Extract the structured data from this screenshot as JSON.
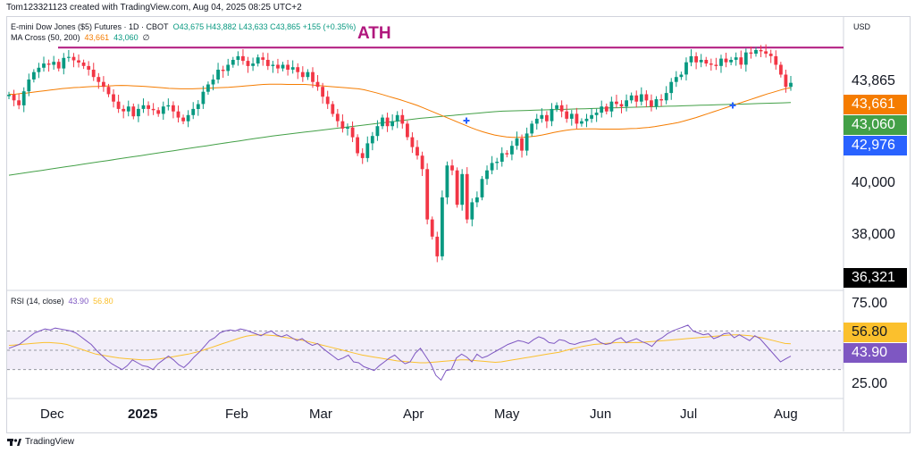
{
  "header": {
    "created_line": "Tom123321123 created with TradingView.com, Aug 04, 2025 08:25 UTC+2",
    "instrument": "E-mini Dow Jones ($5) Futures · 1D · CBOT",
    "ohlc": "O43,675  H43,882  L43,633  C43,865  +155 (+0.35%)",
    "ma_label": "MA Cross (50, 200)",
    "ma_fast": "43,661",
    "ma_slow": "43,060",
    "ma_symbol": "∅",
    "rsi_label": "RSI (14, close)",
    "rsi_value": "43.90",
    "rsi_ma": "56.80",
    "annotation": "ATH",
    "currency": "USD"
  },
  "price_axis": {
    "labels": [
      "43,865",
      "40,000",
      "38,000"
    ],
    "badges": [
      {
        "text": "43,661",
        "color": "#f57c00"
      },
      {
        "text": "43,060",
        "color": "#43a047"
      },
      {
        "text": "42,976",
        "color": "#2962ff"
      },
      {
        "text": "36,321",
        "color": "#000000"
      }
    ]
  },
  "rsi_axis": {
    "labels": [
      "75.00",
      "25.00"
    ],
    "badges": [
      {
        "text": "56.80",
        "color": "#fbc02d",
        "text_color": "#131722"
      },
      {
        "text": "43.90",
        "color": "#7e57c2",
        "text_color": "#ffffff"
      }
    ]
  },
  "time_axis": [
    "Dec",
    "2025",
    "Feb",
    "Mar",
    "Apr",
    "May",
    "Jun",
    "Jul",
    "Aug"
  ],
  "footer": {
    "brand": "TradingView"
  },
  "colors": {
    "up": "#089981",
    "down": "#f23645",
    "ma50": "#f57c00",
    "ma200": "#43a047",
    "rsi": "#7e57c2",
    "rsi_ma": "#fbc02d",
    "ath_line": "#b0177d",
    "cross": "#2962ff"
  },
  "chart_data": {
    "type": "candlestick",
    "ath_level": 45300,
    "price_ylim": [
      36321,
      45600
    ],
    "closes": [
      43380,
      43150,
      42950,
      43520,
      44000,
      44300,
      44480,
      44650,
      44600,
      44720,
      44450,
      44880,
      44920,
      44780,
      44690,
      44550,
      44400,
      44100,
      43900,
      43700,
      43400,
      43100,
      42800,
      42700,
      42900,
      42500,
      42800,
      42950,
      42800,
      42750,
      42600,
      42900,
      42950,
      42700,
      42450,
      42300,
      42550,
      42800,
      43000,
      43500,
      43800,
      44000,
      44400,
      44350,
      44600,
      44800,
      44950,
      44760,
      44550,
      44650,
      44900,
      44800,
      44550,
      44600,
      44450,
      44600,
      44400,
      44500,
      44300,
      44100,
      44300,
      43900,
      43700,
      43300,
      43000,
      42600,
      42300,
      42000,
      42050,
      41650,
      41000,
      40800,
      41400,
      41700,
      42100,
      42450,
      42100,
      42300,
      42550,
      42200,
      41650,
      41250,
      40900,
      40350,
      38300,
      37600,
      36800,
      39200,
      40500,
      40300,
      38900,
      40150,
      38300,
      39000,
      39200,
      39950,
      40300,
      40600,
      40650,
      41000,
      40950,
      41300,
      41600,
      41100,
      41800,
      42200,
      42400,
      42550,
      42300,
      42800,
      42950,
      42700,
      42400,
      42600,
      42200,
      42300,
      42400,
      42550,
      42650,
      42900,
      42700,
      43100,
      43000,
      42900,
      43150,
      43350,
      43100,
      43400,
      43150,
      42900,
      43200,
      43150,
      43450,
      43900,
      44100,
      44200,
      44700,
      44950,
      44700,
      44800,
      44650,
      44600,
      44550,
      44850,
      44700,
      44800,
      44900,
      44600,
      45100,
      45050,
      45200,
      45150,
      45050,
      44950,
      44600,
      44200,
      43700,
      43865
    ],
    "ma50": [
      43400,
      43400,
      43430,
      43450,
      43480,
      43510,
      43540,
      43570,
      43600,
      43630,
      43650,
      43670,
      43680,
      43700,
      43710,
      43720,
      43730,
      43740,
      43750,
      43760,
      43750,
      43740,
      43730,
      43720,
      43700,
      43680,
      43660,
      43640,
      43630,
      43620,
      43620,
      43620,
      43630,
      43640,
      43650,
      43660,
      43670,
      43680,
      43700,
      43720,
      43740,
      43760,
      43780,
      43800,
      43810,
      43810,
      43810,
      43800,
      43800,
      43800,
      43800,
      43780,
      43760,
      43740,
      43720,
      43700,
      43680,
      43660,
      43640,
      43620,
      43580,
      43520,
      43460,
      43390,
      43320,
      43250,
      43180,
      43100,
      43020,
      42940,
      42840,
      42740,
      42640,
      42540,
      42440,
      42340,
      42240,
      42140,
      42040,
      41950,
      41870,
      41800,
      41740,
      41700,
      41660,
      41640,
      41640,
      41650,
      41670,
      41700,
      41740,
      41790,
      41840,
      41890,
      41930,
      41960,
      41980,
      41990,
      41990,
      41990,
      41980,
      41980,
      41980,
      41980,
      41990,
      42000,
      42010,
      42030,
      42050,
      42080,
      42120,
      42160,
      42200,
      42250,
      42310,
      42380,
      42450,
      42530,
      42610,
      42690,
      42770,
      42850,
      42930,
      43010,
      43090,
      43170,
      43250,
      43330,
      43410,
      43480,
      43550,
      43620,
      43661
    ],
    "ma200": [
      40100,
      40150,
      40200,
      40250,
      40300,
      40350,
      40400,
      40450,
      40500,
      40550,
      40600,
      40650,
      40700,
      40750,
      40800,
      40850,
      40900,
      40950,
      41000,
      41050,
      41100,
      41150,
      41200,
      41250,
      41300,
      41350,
      41400,
      41450,
      41500,
      41550,
      41600,
      41650,
      41700,
      41740,
      41780,
      41820,
      41860,
      41900,
      41940,
      41980,
      42020,
      42060,
      42100,
      42140,
      42180,
      42220,
      42260,
      42300,
      42340,
      42380,
      42420,
      42450,
      42480,
      42510,
      42540,
      42570,
      42600,
      42630,
      42660,
      42690,
      42710,
      42720,
      42730,
      42740,
      42750,
      42760,
      42770,
      42780,
      42790,
      42800,
      42810,
      42820,
      42830,
      42840,
      42850,
      42860,
      42870,
      42880,
      42890,
      42900,
      42910,
      42920,
      42930,
      42940,
      42950,
      42960,
      42970,
      42980,
      42990,
      43000,
      43010,
      43020,
      43030,
      43040,
      43050,
      43060
    ],
    "rsi_ylim": [
      0,
      100
    ],
    "rsi_levels": [
      70,
      50,
      30
    ],
    "rsi": [
      52,
      54,
      56,
      60,
      64,
      68,
      70,
      72,
      71,
      73,
      72,
      71,
      70,
      68,
      64,
      60,
      56,
      50,
      45,
      40,
      36,
      33,
      30,
      34,
      40,
      37,
      34,
      33,
      30,
      36,
      40,
      44,
      40,
      35,
      32,
      37,
      43,
      48,
      54,
      60,
      63,
      68,
      70,
      71,
      70,
      72,
      71,
      69,
      67,
      65,
      68,
      70,
      66,
      64,
      66,
      63,
      60,
      62,
      58,
      55,
      57,
      52,
      48,
      44,
      40,
      42,
      45,
      38,
      37,
      33,
      31,
      29,
      34,
      38,
      42,
      45,
      40,
      36,
      38,
      47,
      52,
      44,
      36,
      24,
      19,
      29,
      30,
      42,
      46,
      43,
      38,
      46,
      42,
      44,
      47,
      50,
      53,
      56,
      58,
      60,
      59,
      57,
      61,
      64,
      62,
      58,
      57,
      61,
      60,
      57,
      56,
      58,
      59,
      60,
      62,
      58,
      56,
      57,
      61,
      63,
      58,
      60,
      62,
      59,
      57,
      54,
      60,
      63,
      67,
      70,
      72,
      74,
      76,
      70,
      68,
      66,
      67,
      62,
      64,
      67,
      68,
      63,
      66,
      63,
      60,
      65,
      62,
      56,
      50,
      44,
      38,
      41,
      43.9
    ],
    "rsi_ma": [
      55,
      55.5,
      56,
      56.5,
      57,
      57.5,
      58,
      58,
      57.5,
      57,
      56,
      54,
      52,
      50,
      48,
      46,
      45,
      44,
      43,
      42,
      41.5,
      41,
      40.5,
      40,
      40,
      40.5,
      41,
      42,
      43,
      44,
      45,
      46,
      47.5,
      49,
      51,
      53,
      55,
      57,
      59,
      61,
      63,
      64.5,
      65.5,
      66,
      66,
      65.5,
      65,
      64,
      63,
      62,
      61,
      60,
      58.5,
      57,
      55.5,
      54,
      52.5,
      51,
      49.5,
      48,
      46.5,
      45,
      44,
      43,
      42,
      41,
      40,
      39,
      38.5,
      38,
      37.5,
      37,
      37,
      37.5,
      38,
      38.5,
      39,
      39.5,
      40,
      40,
      39.5,
      39,
      38.5,
      38,
      37.5,
      38,
      39,
      40,
      41,
      42,
      43,
      44,
      45,
      46,
      47,
      48,
      49.5,
      51,
      52.5,
      54,
      55,
      56,
      56.5,
      57,
      57.5,
      58,
      58,
      58,
      58,
      58,
      58.5,
      59,
      59.5,
      60,
      60.5,
      61,
      61.5,
      62,
      62.5,
      63,
      63.5,
      64,
      64.5,
      65,
      65.5,
      66,
      66,
      65.5,
      65,
      64,
      63,
      61.5,
      60,
      58.5,
      57,
      56.8
    ]
  }
}
